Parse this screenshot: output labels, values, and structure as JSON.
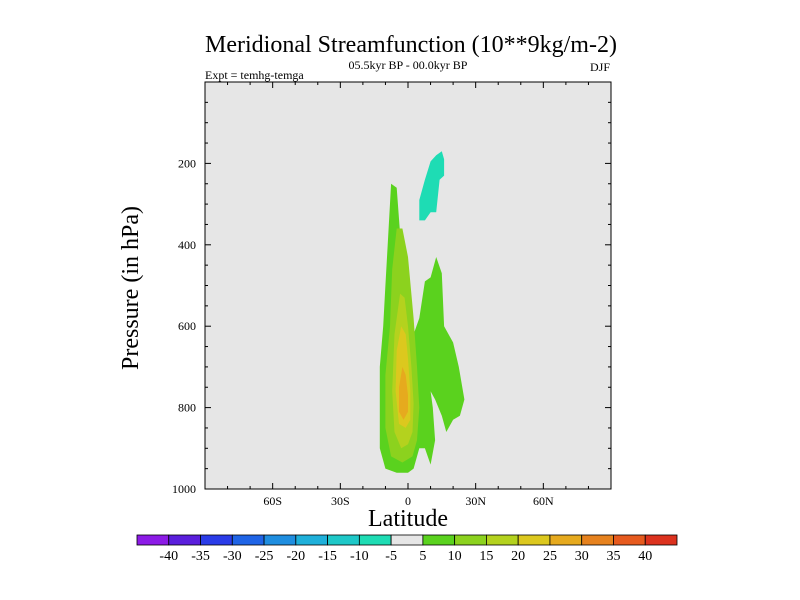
{
  "chart_data": {
    "type": "contour",
    "title": "Meridional Streamfunction (10**9kg/m-2)",
    "left_string": "Expt = temhg-temga",
    "center_string": "05.5kyr BP - 00.0kyr BP",
    "right_string": "DJF",
    "xlabel": "Latitude",
    "ylabel": "Pressure (in hPa)",
    "xlim": [
      -90,
      90
    ],
    "ylim": [
      1000,
      0
    ],
    "x_ticks": [
      {
        "value": -60,
        "label": "60S"
      },
      {
        "value": -30,
        "label": "30S"
      },
      {
        "value": 0,
        "label": "0"
      },
      {
        "value": 30,
        "label": "30N"
      },
      {
        "value": 60,
        "label": "60N"
      }
    ],
    "y_ticks": [
      {
        "value": 200,
        "label": "200"
      },
      {
        "value": 400,
        "label": "400"
      },
      {
        "value": 600,
        "label": "600"
      },
      {
        "value": 800,
        "label": "800"
      },
      {
        "value": 1000,
        "label": "1000"
      }
    ],
    "background_color": "#e6e6e6",
    "colorbar": {
      "levels": [
        "-40",
        "-35",
        "-30",
        "-25",
        "-20",
        "-15",
        "-10",
        "-5",
        "5",
        "10",
        "15",
        "20",
        "25",
        "30",
        "35",
        "40"
      ],
      "colors": [
        "#8c1be6",
        "#5a1edc",
        "#2a3ce8",
        "#1f64e6",
        "#1f8ee0",
        "#1fb0da",
        "#1ec8c8",
        "#1edcb4",
        "#e6e6e6",
        "#5ad21e",
        "#8cd21e",
        "#b4d21e",
        "#dcc81e",
        "#e6aa1e",
        "#e6821e",
        "#e65a1e",
        "#dc321e"
      ]
    },
    "regions": [
      {
        "level": "5 to 10",
        "color": "#5ad21e",
        "points": [
          [
            -7.5,
            250
          ],
          [
            -5,
            260
          ],
          [
            -2.5,
            450
          ],
          [
            0,
            550
          ],
          [
            2.5,
            620
          ],
          [
            5,
            580
          ],
          [
            7.5,
            490
          ],
          [
            10,
            480
          ],
          [
            12.5,
            430
          ],
          [
            15,
            470
          ],
          [
            16,
            600
          ],
          [
            20,
            640
          ],
          [
            22.5,
            700
          ],
          [
            25,
            780
          ],
          [
            23,
            820
          ],
          [
            20,
            830
          ],
          [
            17,
            860
          ],
          [
            15,
            820
          ],
          [
            12,
            780
          ],
          [
            10,
            760
          ],
          [
            11,
            800
          ],
          [
            12,
            880
          ],
          [
            10,
            940
          ],
          [
            7.5,
            900
          ],
          [
            5,
            900
          ],
          [
            2.5,
            950
          ],
          [
            0,
            960
          ],
          [
            -5,
            960
          ],
          [
            -10,
            950
          ],
          [
            -12.5,
            900
          ],
          [
            -12.5,
            800
          ],
          [
            -12.5,
            700
          ],
          [
            -11,
            600
          ],
          [
            -10,
            500
          ],
          [
            -9,
            400
          ]
        ]
      },
      {
        "level": "-5 to -10",
        "color": "#1edcb4",
        "points": [
          [
            5,
            290
          ],
          [
            7.5,
            240
          ],
          [
            10,
            195
          ],
          [
            12.5,
            180
          ],
          [
            15,
            170
          ],
          [
            16,
            190
          ],
          [
            16,
            230
          ],
          [
            14,
            240
          ],
          [
            12.5,
            320
          ],
          [
            10,
            320
          ],
          [
            7.5,
            340
          ],
          [
            5,
            340
          ]
        ]
      },
      {
        "level": "10 to 15",
        "color": "#8cd21e",
        "points": [
          [
            -5,
            360
          ],
          [
            -2.5,
            360
          ],
          [
            0,
            430
          ],
          [
            2.5,
            580
          ],
          [
            4,
            700
          ],
          [
            5,
            800
          ],
          [
            4,
            880
          ],
          [
            2,
            920
          ],
          [
            -2.5,
            935
          ],
          [
            -7.5,
            920
          ],
          [
            -10,
            850
          ],
          [
            -10,
            720
          ],
          [
            -8,
            600
          ],
          [
            -7,
            460
          ]
        ]
      },
      {
        "level": "15 to 20",
        "color": "#b4d21e",
        "points": [
          [
            -3.5,
            520
          ],
          [
            -1.5,
            530
          ],
          [
            0,
            600
          ],
          [
            1.5,
            700
          ],
          [
            2.5,
            790
          ],
          [
            2,
            860
          ],
          [
            0,
            890
          ],
          [
            -3,
            900
          ],
          [
            -6,
            860
          ],
          [
            -7,
            760
          ],
          [
            -6,
            620
          ]
        ]
      },
      {
        "level": "20 to 25",
        "color": "#dcc81e",
        "points": [
          [
            -3,
            600
          ],
          [
            -1,
            620
          ],
          [
            0,
            680
          ],
          [
            1,
            760
          ],
          [
            1,
            830
          ],
          [
            -1,
            850
          ],
          [
            -4,
            840
          ],
          [
            -5.5,
            760
          ],
          [
            -5,
            660
          ]
        ]
      },
      {
        "level": "25 to 30",
        "color": "#e6aa1e",
        "points": [
          [
            -2.5,
            700
          ],
          [
            -1,
            720
          ],
          [
            0,
            770
          ],
          [
            0,
            810
          ],
          [
            -2,
            830
          ],
          [
            -4,
            810
          ],
          [
            -4,
            750
          ]
        ]
      }
    ]
  }
}
